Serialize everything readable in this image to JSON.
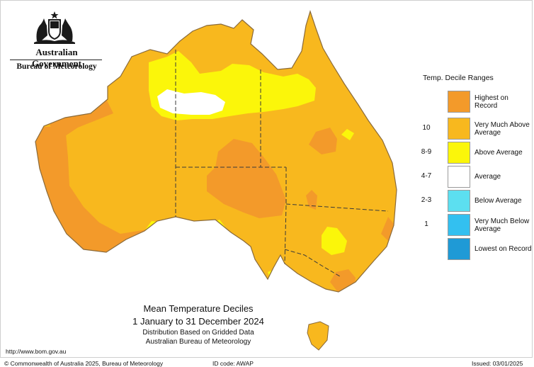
{
  "header": {
    "government": "Australian Government",
    "bureau": "Bureau of Meteorology"
  },
  "legend": {
    "title": "Temp. Decile Ranges",
    "items": [
      {
        "code": "",
        "label": "Highest on Record",
        "color": "#f39a2a"
      },
      {
        "code": "10",
        "label": "Very Much Above Average",
        "color": "#f8b81e"
      },
      {
        "code": "8-9",
        "label": "Above Average",
        "color": "#fbf60a"
      },
      {
        "code": "4-7",
        "label": "Average",
        "color": "#ffffff"
      },
      {
        "code": "2-3",
        "label": "Below Average",
        "color": "#5cdff0"
      },
      {
        "code": "1",
        "label": "Very Much Below Average",
        "color": "#33c0f0"
      },
      {
        "code": "",
        "label": "Lowest on Record",
        "color": "#1f9ad6"
      }
    ]
  },
  "caption": {
    "title": "Mean Temperature Deciles",
    "period": "1 January to 31 December 2024",
    "distribution": "Distribution Based on Gridded Data",
    "source": "Australian Bureau of Meteorology"
  },
  "footer": {
    "url": "http://www.bom.gov.au",
    "copyright": "© Commonwealth of Australia 2025, Bureau of Meteorology",
    "id_code": "ID code: AWAP",
    "issued": "Issued: 03/01/2025"
  },
  "map_colors": {
    "very_much_above": "#f8b81e",
    "highest_on_record": "#f39a2a",
    "above": "#fbf60a",
    "average": "#ffffff",
    "outline": "#8a6a3a"
  }
}
